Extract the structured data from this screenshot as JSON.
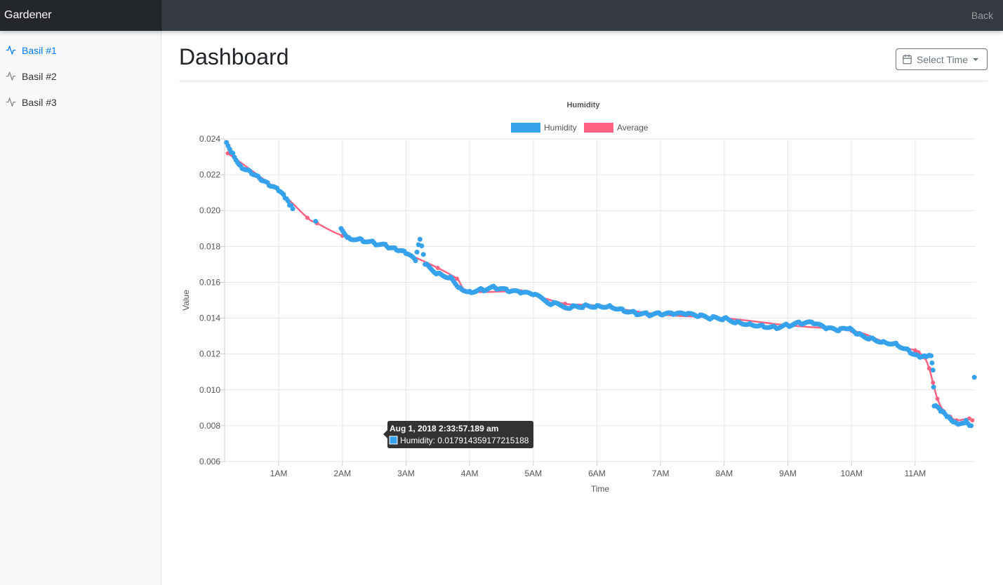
{
  "app": {
    "brand": "Gardener",
    "back_label": "Back"
  },
  "sidebar": {
    "items": [
      {
        "label": "Basil #1",
        "icon": "activity-icon",
        "active": true
      },
      {
        "label": "Basil #2",
        "icon": "activity-icon",
        "active": false
      },
      {
        "label": "Basil #3",
        "icon": "activity-icon",
        "active": false
      }
    ]
  },
  "main": {
    "title": "Dashboard",
    "time_button": {
      "label": "Select Time",
      "icon": "calendar-icon"
    }
  },
  "colors": {
    "humidity": "#36A2EB",
    "average": "#FF6384"
  },
  "tooltip": {
    "title": "Aug 1, 2018 2:33:57.189 am",
    "body": "Humidity: 0.017914359177215188"
  },
  "chart_data": {
    "type": "scatter",
    "title": "Humidity",
    "xlabel": "Time",
    "ylabel": "Value",
    "xticks": [
      "1AM",
      "2AM",
      "3AM",
      "4AM",
      "5AM",
      "6AM",
      "7AM",
      "8AM",
      "9AM",
      "10AM",
      "11AM"
    ],
    "xlim": [
      0.15,
      11.95
    ],
    "ylim": [
      0.006,
      0.024
    ],
    "yticks": [
      "0.024",
      "0.022",
      "0.020",
      "0.018",
      "0.016",
      "0.014",
      "0.012",
      "0.010",
      "0.008",
      "0.006"
    ],
    "legend": {
      "placement": "top"
    },
    "grid": true,
    "series": [
      {
        "name": "Humidity",
        "type": "scatter",
        "x": [
          0.18,
          0.28,
          0.4,
          0.55,
          0.7,
          0.85,
          1.0,
          1.1,
          1.17,
          1.22,
          1.58,
          1.98,
          2.1,
          2.3,
          2.5,
          2.7,
          2.85,
          3.0,
          3.15,
          3.22,
          3.3,
          3.5,
          3.7,
          3.85,
          4.0,
          4.2,
          4.4,
          4.6,
          4.8,
          5.0,
          5.3,
          5.6,
          5.8,
          6.0,
          6.2,
          6.4,
          6.6,
          6.8,
          7.0,
          7.2,
          7.4,
          7.6,
          7.8,
          8.0,
          8.2,
          8.4,
          8.6,
          8.8,
          9.0,
          9.2,
          9.4,
          9.6,
          9.8,
          9.95,
          10.1,
          10.3,
          10.5,
          10.7,
          10.9,
          11.05,
          11.15,
          11.25,
          11.28,
          11.3,
          11.4,
          11.5,
          11.6,
          11.7,
          11.8,
          11.88,
          11.93
        ],
        "y": [
          0.0238,
          0.0232,
          0.0225,
          0.0222,
          0.0218,
          0.0214,
          0.0211,
          0.0207,
          0.0203,
          0.0201,
          0.0194,
          0.019,
          0.0185,
          0.0184,
          0.0182,
          0.018,
          0.0178,
          0.0176,
          0.0172,
          0.0184,
          0.017,
          0.0165,
          0.0163,
          0.0157,
          0.0155,
          0.0156,
          0.0157,
          0.0155,
          0.0154,
          0.0153,
          0.0148,
          0.0146,
          0.0147,
          0.0147,
          0.0147,
          0.0145,
          0.0143,
          0.0142,
          0.0142,
          0.0142,
          0.0142,
          0.0141,
          0.014,
          0.014,
          0.0138,
          0.0137,
          0.0136,
          0.0135,
          0.0136,
          0.0137,
          0.0137,
          0.0134,
          0.0133,
          0.0134,
          0.0131,
          0.0129,
          0.0127,
          0.0126,
          0.0122,
          0.0119,
          0.0119,
          0.0119,
          0.0111,
          0.0091,
          0.0088,
          0.0085,
          0.0082,
          0.0081,
          0.0083,
          0.008,
          0.0107
        ]
      },
      {
        "name": "Average",
        "type": "line",
        "x": [
          0.2,
          1.0,
          1.45,
          1.6,
          2.0,
          2.5,
          3.0,
          3.5,
          3.8,
          4.0,
          4.8,
          5.0,
          5.5,
          6.0,
          7.0,
          8.0,
          9.0,
          10.0,
          10.5,
          11.0,
          11.05,
          11.15,
          11.22,
          11.28,
          11.35,
          11.45,
          11.55,
          11.65,
          11.85,
          11.9
        ],
        "y": [
          0.0232,
          0.0211,
          0.0196,
          0.0193,
          0.0186,
          0.0182,
          0.0176,
          0.0168,
          0.0162,
          0.0155,
          0.0155,
          0.0153,
          0.0148,
          0.0147,
          0.0142,
          0.014,
          0.0136,
          0.0133,
          0.0127,
          0.0122,
          0.0121,
          0.0118,
          0.0112,
          0.0104,
          0.0095,
          0.0088,
          0.0085,
          0.0083,
          0.0084,
          0.0083
        ]
      }
    ]
  }
}
